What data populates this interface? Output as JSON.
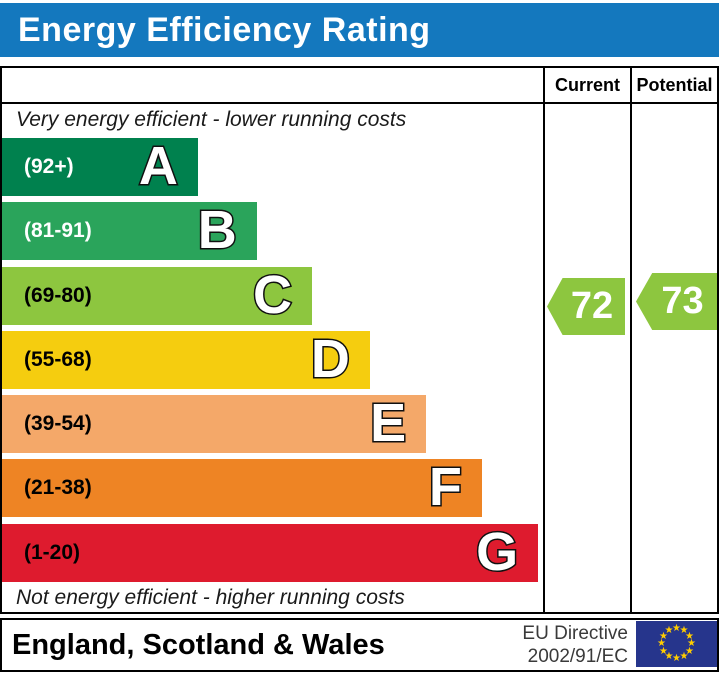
{
  "title": "Energy Efficiency Rating",
  "header": {
    "current": "Current",
    "potential": "Potential"
  },
  "notes": {
    "top": "Very energy efficient - lower running costs",
    "bottom": "Not energy efficient - higher running costs"
  },
  "chart": {
    "bands": [
      {
        "letter": "A",
        "range": "(92+)",
        "color": "#00814e",
        "label_color": "#ffffff",
        "width_pct": 36.2
      },
      {
        "letter": "B",
        "range": "(81-91)",
        "color": "#2aa45b",
        "label_color": "#ffffff",
        "width_pct": 47.1
      },
      {
        "letter": "C",
        "range": "(69-80)",
        "color": "#8dc63f",
        "label_color": "#000000",
        "width_pct": 57.3
      },
      {
        "letter": "D",
        "range": "(55-68)",
        "color": "#f5cd0f",
        "label_color": "#000000",
        "width_pct": 68.0
      },
      {
        "letter": "E",
        "range": "(39-54)",
        "color": "#f4a869",
        "label_color": "#000000",
        "width_pct": 78.4
      },
      {
        "letter": "F",
        "range": "(21-38)",
        "color": "#ee8424",
        "label_color": "#000000",
        "width_pct": 88.7
      },
      {
        "letter": "G",
        "range": "(1-20)",
        "color": "#de1b2e",
        "label_color": "#000000",
        "width_pct": 99.1
      }
    ],
    "arrow_color": "#8dc63f",
    "current": {
      "value": "72"
    },
    "potential": {
      "value": "73"
    }
  },
  "footer": {
    "region": "England, Scotland & Wales",
    "directive_line1": "EU Directive",
    "directive_line2": "2002/91/EC"
  },
  "colors": {
    "title_bar": "#1478be",
    "eu_flag_blue": "#26358c",
    "eu_star_yellow": "#ffcc00"
  },
  "chart_data": {
    "type": "bar",
    "title": "Energy Efficiency Rating",
    "categories": [
      "A",
      "B",
      "C",
      "D",
      "E",
      "F",
      "G"
    ],
    "band_ranges": [
      "(92+)",
      "(81-91)",
      "(69-80)",
      "(55-68)",
      "(39-54)",
      "(21-38)",
      "(1-20)"
    ],
    "values": [
      36.2,
      47.1,
      57.3,
      68.0,
      78.4,
      88.7,
      99.1
    ],
    "values_unit": "bar length, % of chart column width",
    "bar_colors": [
      "#00814e",
      "#2aa45b",
      "#8dc63f",
      "#f5cd0f",
      "#f4a869",
      "#ee8424",
      "#de1b2e"
    ],
    "annotations": [
      "Very energy efficient - lower running costs",
      "Not energy efficient - higher running costs"
    ],
    "series": [
      {
        "name": "Current",
        "value": 72,
        "band": "C"
      },
      {
        "name": "Potential",
        "value": 73,
        "band": "C"
      }
    ],
    "legend_position": "none",
    "grid": false,
    "footer_region": "England, Scotland & Wales",
    "footer_directive": "EU Directive 2002/91/EC"
  }
}
